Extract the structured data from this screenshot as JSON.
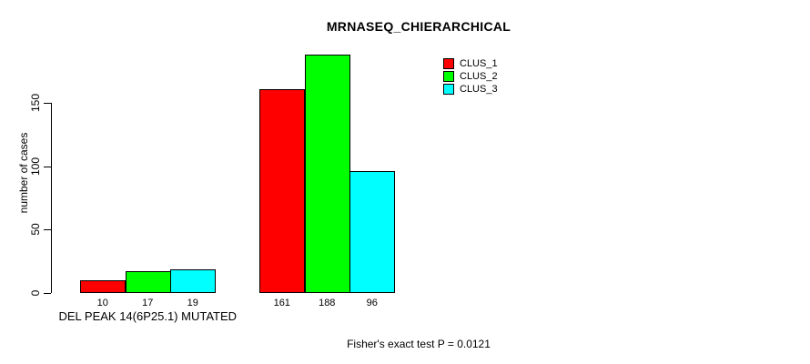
{
  "chart_data": {
    "type": "bar",
    "title": "MRNASEQ_CHIERARCHICAL",
    "ylabel": "number of cases",
    "xlabel": "",
    "yticks": [
      0,
      50,
      100,
      150
    ],
    "ylim": [
      0,
      193
    ],
    "grid": false,
    "legend_position": "top-right",
    "series": [
      {
        "name": "CLUS_1",
        "color": "#ff0000"
      },
      {
        "name": "CLUS_2",
        "color": "#00ff00"
      },
      {
        "name": "CLUS_3",
        "color": "#00ffff"
      }
    ],
    "groups": [
      {
        "label": "DEL PEAK 14(6P25.1) MUTATED",
        "values": [
          10,
          17,
          19
        ]
      },
      {
        "label": "",
        "values": [
          161,
          188,
          96
        ]
      }
    ],
    "annotation": "Fisher's exact test P = 0.0121"
  }
}
